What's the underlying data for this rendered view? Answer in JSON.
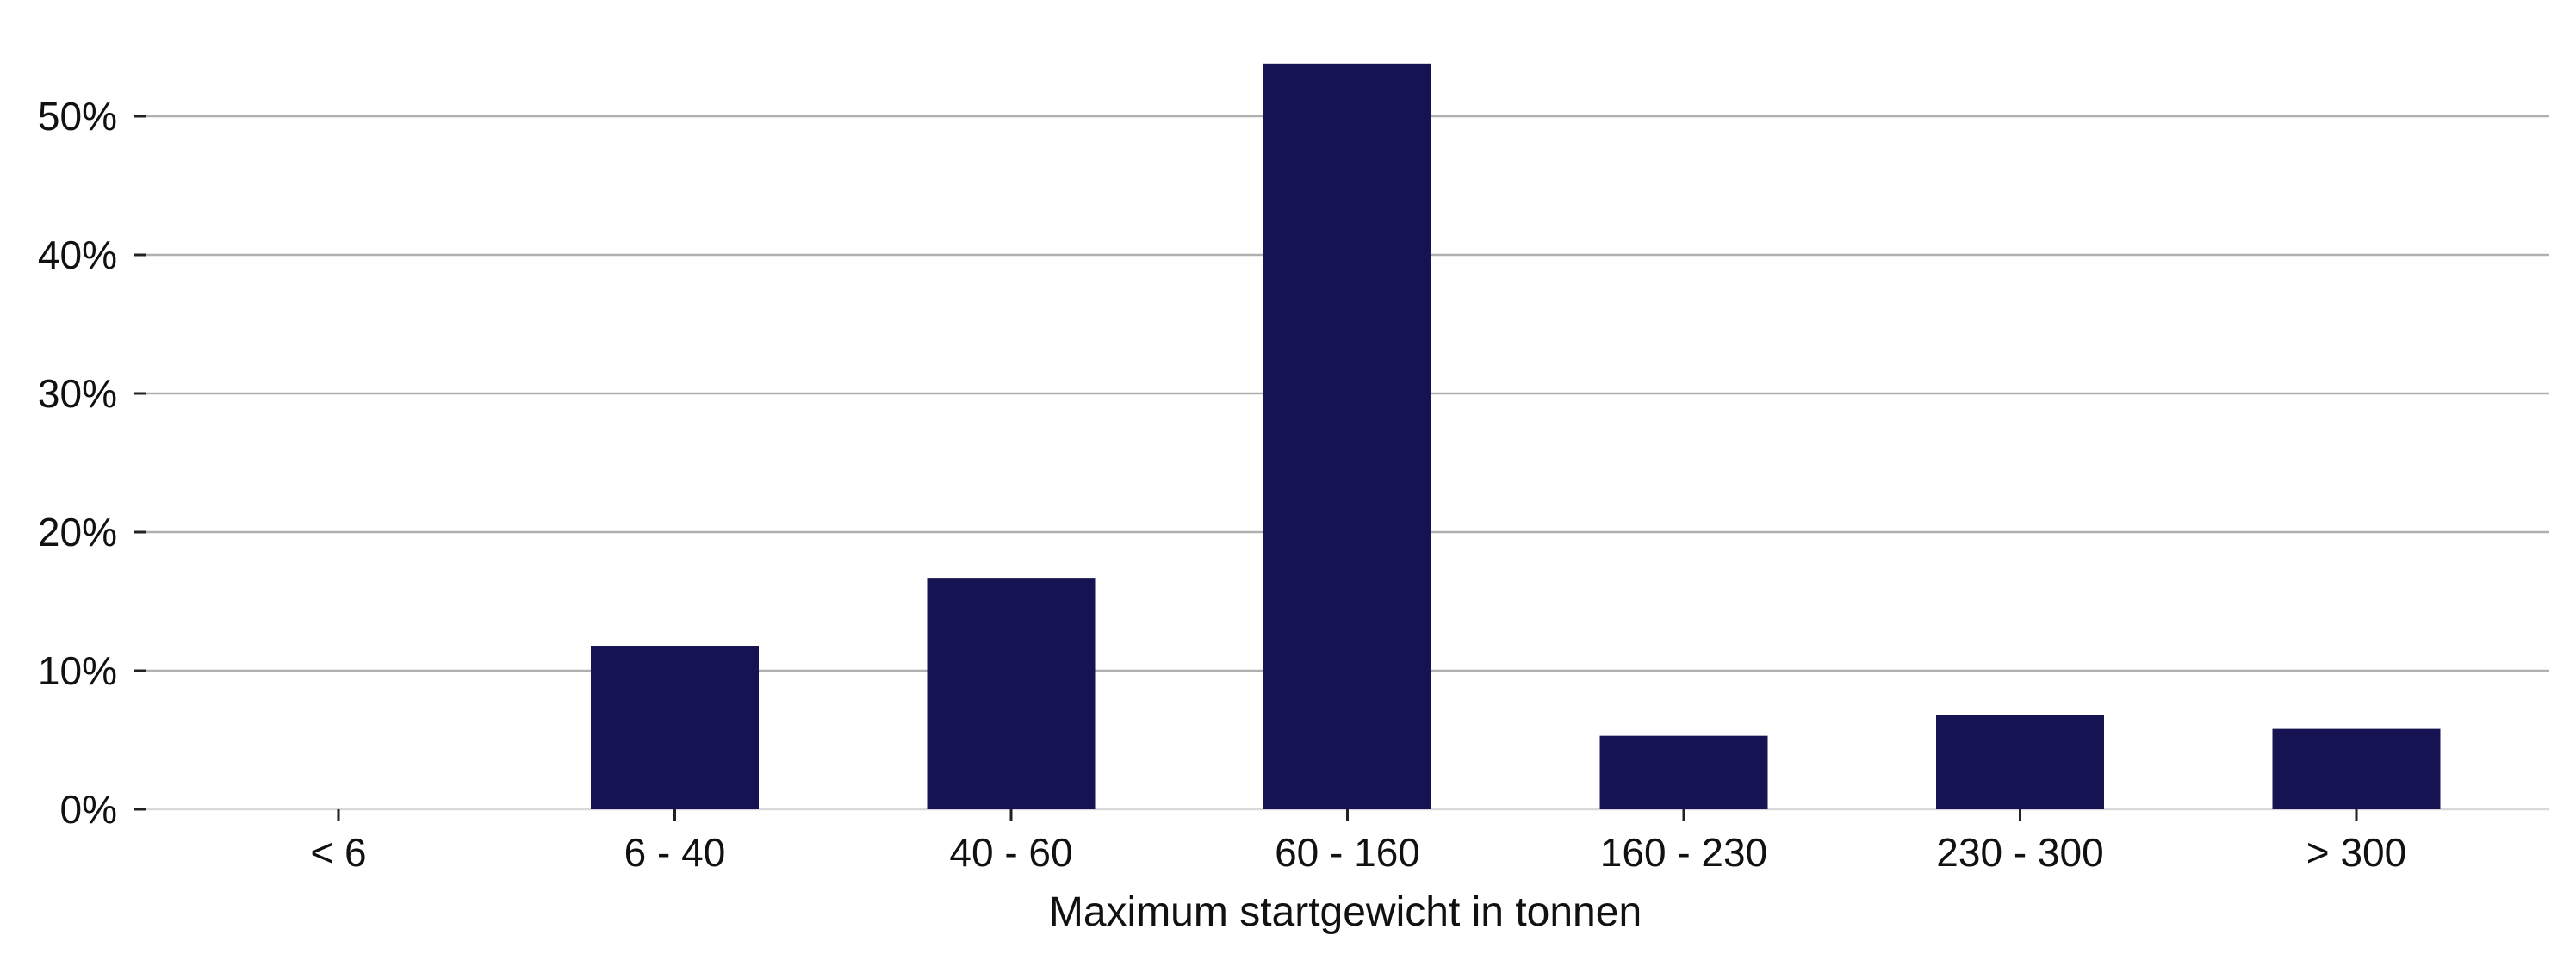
{
  "chart_data": {
    "type": "bar",
    "title": "",
    "xlabel": "Maximum startgewicht in tonnen",
    "ylabel": "",
    "categories": [
      "< 6",
      "6 - 40",
      "40 - 60",
      "60 - 160",
      "160 - 230",
      "230 - 300",
      "> 300"
    ],
    "values": [
      0,
      11.8,
      16.7,
      53.8,
      5.3,
      6.8,
      5.8
    ],
    "ylim": [
      0,
      55
    ],
    "yticks": [
      0,
      10,
      20,
      30,
      40,
      50
    ],
    "ytick_labels": [
      "0%",
      "10%",
      "20%",
      "30%",
      "40%",
      "50%"
    ],
    "grid": true,
    "bar_color": "#151352",
    "grid_color": "#b0b0b0"
  }
}
